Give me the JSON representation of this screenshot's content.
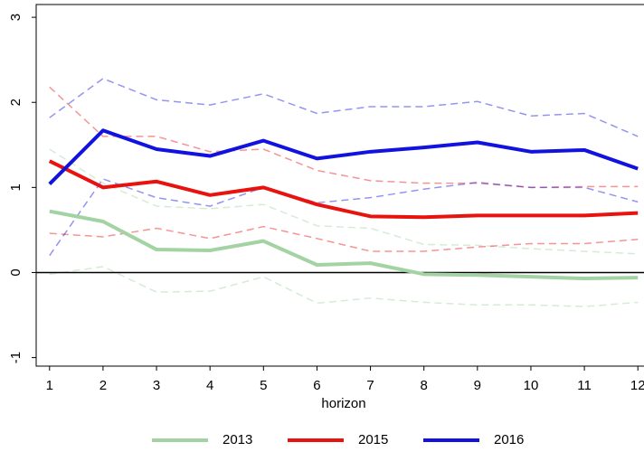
{
  "chart_data": {
    "type": "line",
    "x_label": "horizon",
    "x": [
      1,
      2,
      3,
      4,
      5,
      6,
      7,
      8,
      9,
      10,
      11,
      12
    ],
    "xlim": [
      0.75,
      12.25
    ],
    "xticks": [
      1,
      2,
      3,
      4,
      5,
      6,
      7,
      8,
      9,
      10,
      11,
      12
    ],
    "ylim": [
      -1.1,
      3.15
    ],
    "yticks": [
      -1,
      0,
      1,
      2,
      3
    ],
    "reference_line": 0,
    "series": [
      {
        "name": "2013",
        "color": "#a3d3a3",
        "values": [
          0.72,
          0.6,
          0.27,
          0.26,
          0.37,
          0.09,
          0.11,
          -0.02,
          -0.03,
          -0.05,
          -0.07,
          -0.06
        ],
        "upper": [
          1.45,
          1.05,
          0.78,
          0.75,
          0.8,
          0.55,
          0.52,
          0.33,
          0.32,
          0.28,
          0.25,
          0.22
        ],
        "lower": [
          -0.02,
          0.07,
          -0.23,
          -0.22,
          -0.05,
          -0.36,
          -0.3,
          -0.35,
          -0.38,
          -0.38,
          -0.4,
          -0.35
        ]
      },
      {
        "name": "2015",
        "color": "#e8120f",
        "values": [
          1.31,
          1.0,
          1.07,
          0.91,
          1.0,
          0.8,
          0.66,
          0.65,
          0.67,
          0.67,
          0.67,
          0.7
        ],
        "upper": [
          2.18,
          1.6,
          1.6,
          1.42,
          1.45,
          1.2,
          1.08,
          1.05,
          1.05,
          1.0,
          1.01,
          1.01
        ],
        "lower": [
          0.46,
          0.42,
          0.52,
          0.4,
          0.54,
          0.4,
          0.25,
          0.25,
          0.3,
          0.34,
          0.34,
          0.39
        ]
      },
      {
        "name": "2016",
        "color": "#1212e0",
        "values": [
          1.04,
          1.67,
          1.45,
          1.37,
          1.55,
          1.34,
          1.42,
          1.47,
          1.53,
          1.42,
          1.44,
          1.22
        ],
        "upper": [
          1.82,
          2.28,
          2.03,
          1.97,
          2.1,
          1.87,
          1.95,
          1.95,
          2.01,
          1.84,
          1.87,
          1.6
        ],
        "lower": [
          0.2,
          1.1,
          0.88,
          0.78,
          1.0,
          0.82,
          0.88,
          0.98,
          1.06,
          1.0,
          1.0,
          0.83
        ]
      }
    ]
  }
}
